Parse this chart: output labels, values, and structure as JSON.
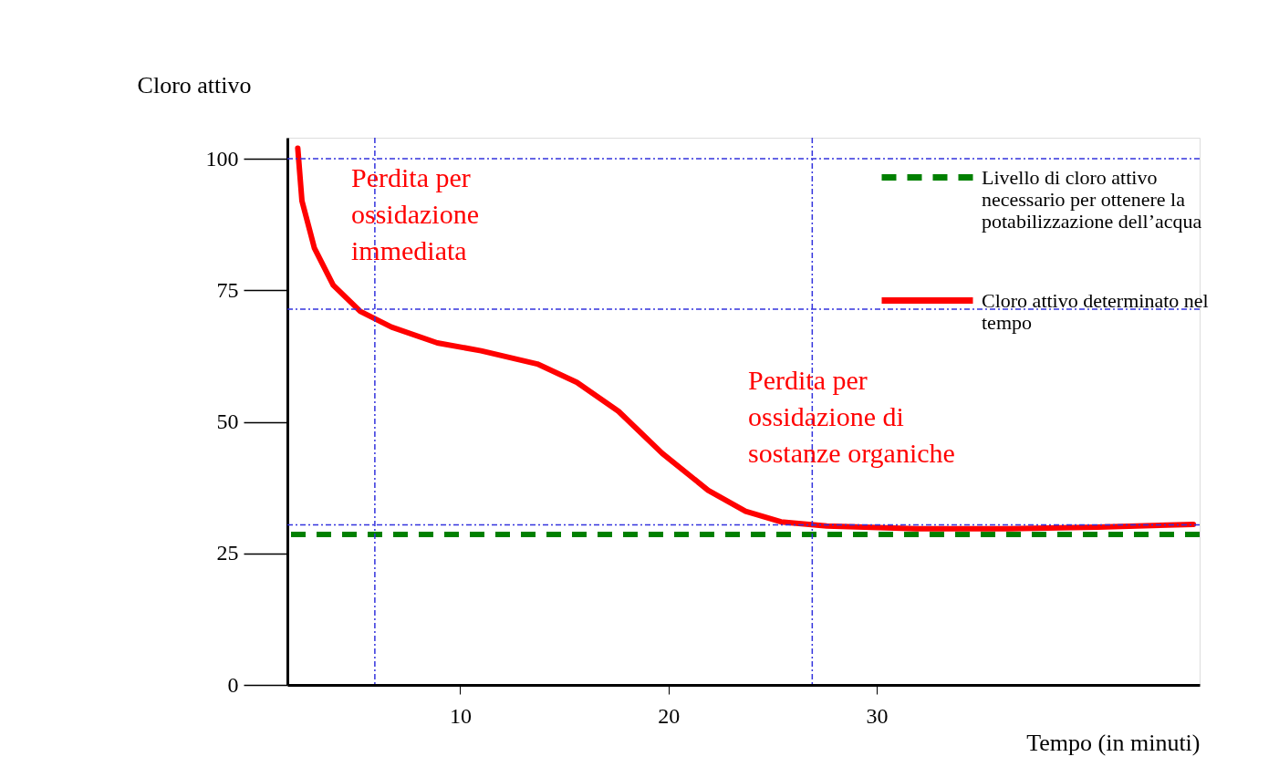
{
  "chart_data": {
    "type": "line",
    "xlabel": "Tempo (in minuti)",
    "ylabel": "Cloro attivo",
    "xlim": [
      1.7,
      45.5
    ],
    "ylim": [
      0,
      104
    ],
    "xticks": [
      10,
      20,
      30
    ],
    "yticks": [
      0,
      25,
      50,
      75,
      100
    ],
    "grid": false,
    "legend": "top right",
    "line_style": "solid",
    "marker": "none",
    "series": [
      {
        "name": "Cloro attivo determinato nel tempo",
        "color": "#ff0000",
        "x": [
          2.2,
          2.4,
          3.0,
          3.9,
          5.2,
          6.7,
          8.9,
          11.0,
          13.7,
          15.6,
          17.6,
          19.7,
          21.9,
          23.7,
          25.4,
          27.6,
          31.9,
          36.3,
          40.6,
          45.2
        ],
        "values": [
          102,
          92,
          83,
          76,
          71,
          68,
          65,
          63.5,
          61,
          57.5,
          52,
          44,
          37,
          33,
          31,
          30.2,
          29.7,
          29.7,
          30,
          30.5
        ]
      }
    ],
    "ref_lines": [
      {
        "axis": "y",
        "value": 28.6,
        "label": "Livello di cloro attivo necessario per ottenere la potabilizzazione dell’acqua",
        "color": "#008000",
        "line_style": "dashed"
      },
      {
        "axis": "y",
        "value": 100,
        "color": "#3333dd",
        "line_style": "dotted"
      },
      {
        "axis": "y",
        "value": 71.4,
        "color": "#3333dd",
        "line_style": "dotted"
      },
      {
        "axis": "y",
        "value": 30.4,
        "color": "#3333dd",
        "line_style": "dotted"
      },
      {
        "axis": "x",
        "value": 5.9,
        "color": "#3333dd",
        "line_style": "dotted"
      },
      {
        "axis": "x",
        "value": 26.9,
        "color": "#3333dd",
        "line_style": "dotted"
      }
    ],
    "annotations": [
      "Perdita per ossidazione immediata",
      "Perdita per ossidazione di sostanze organiche"
    ]
  }
}
